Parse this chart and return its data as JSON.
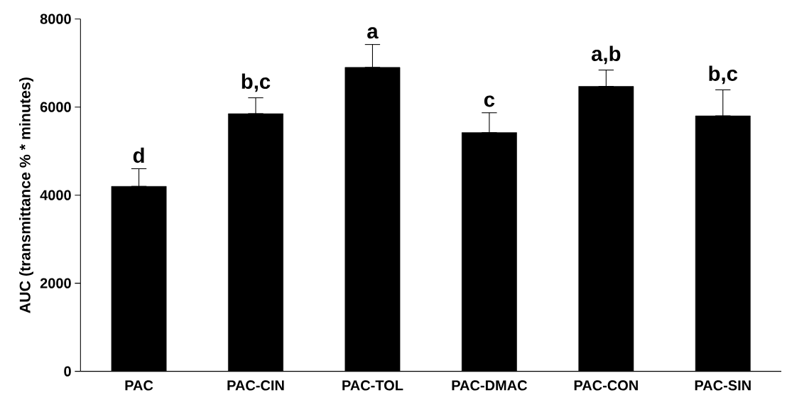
{
  "chart_data": {
    "type": "bar",
    "ylabel": "AUC (transmittance % * minutes)",
    "categories": [
      "PAC",
      "PAC-CIN",
      "PAC-TOL",
      "PAC-DMAC",
      "PAC-CON",
      "PAC-SIN"
    ],
    "values": [
      4200,
      5850,
      6900,
      5420,
      6470,
      5800
    ],
    "errors": [
      [
        4200,
        4600
      ],
      [
        5850,
        6210
      ],
      [
        6900,
        7420
      ],
      [
        5420,
        5870
      ],
      [
        6470,
        6840
      ],
      [
        5800,
        6390
      ]
    ],
    "color": "#000000",
    "ylim": [
      0,
      8000
    ],
    "yticks": [
      0,
      2000,
      4000,
      6000,
      8000
    ],
    "annotations": [
      "d",
      "b,c",
      "a",
      "c",
      "a,b",
      "b,c"
    ]
  }
}
